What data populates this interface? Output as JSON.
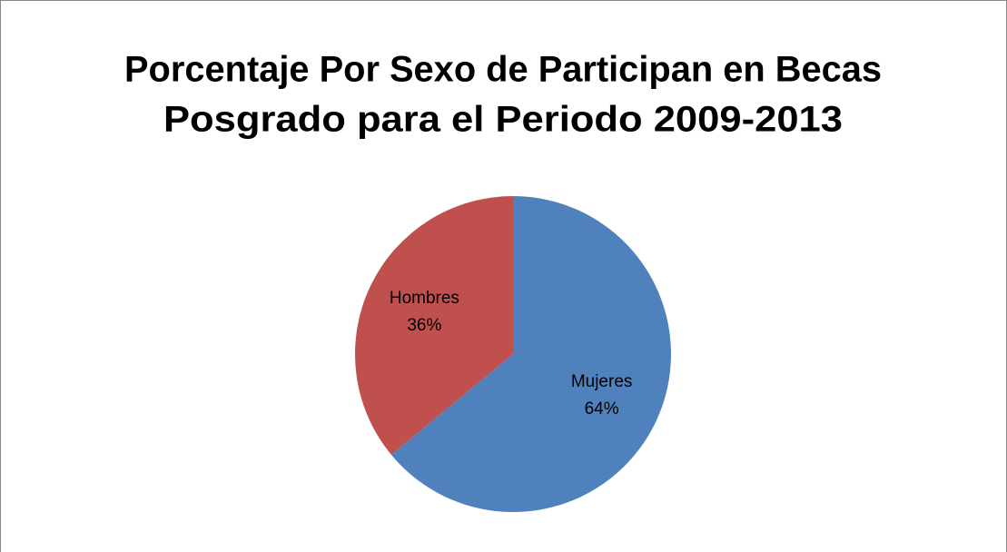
{
  "chart_data": {
    "type": "pie",
    "title": [
      "Porcentaje Por Sexo de Participan en Becas",
      "Posgrado para el Periodo 2009-2013"
    ],
    "categories": [
      "Mujeres",
      "Hombres"
    ],
    "values": [
      64,
      36
    ],
    "value_labels": [
      "64%",
      "36%"
    ],
    "colors": [
      "#4f81bd",
      "#c0504d"
    ]
  }
}
